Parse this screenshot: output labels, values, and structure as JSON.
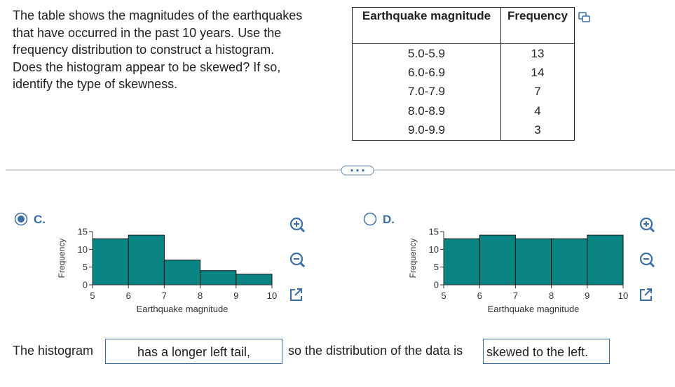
{
  "question": [
    "The table shows the magnitudes of the earthquakes",
    "that have occurred in the past 10 years. Use the",
    "frequency distribution to construct a histogram.",
    "Does the histogram appear to be skewed? If so,",
    "identify the type of skewness."
  ],
  "table": {
    "headers": [
      "Earthquake magnitude",
      "Frequency"
    ],
    "rows": [
      [
        "5.0-5.9",
        13
      ],
      [
        "6.0-6.9",
        14
      ],
      [
        "7.0-7.9",
        7
      ],
      [
        "8.0-8.9",
        4
      ],
      [
        "9.0-9.9",
        3
      ]
    ]
  },
  "options": [
    {
      "label": "C.",
      "selected": true
    },
    {
      "label": "D.",
      "selected": false
    }
  ],
  "chart_data": [
    {
      "type": "histogram",
      "xlabel": "Earthquake magnitude",
      "ylabel": "Frequency",
      "bins": [
        5,
        6,
        7,
        8,
        9,
        10
      ],
      "values": [
        13,
        14,
        7,
        4,
        3
      ],
      "color": "#0b8484",
      "xlim": [
        5,
        10
      ],
      "ylim": [
        0,
        15
      ],
      "xticks": [
        5,
        6,
        7,
        8,
        9,
        10
      ],
      "yticks": [
        0,
        5,
        10,
        15
      ]
    },
    {
      "type": "histogram",
      "xlabel": "Earthquake magnitude",
      "ylabel": "Frequency",
      "bins": [
        5,
        6,
        7,
        8,
        9,
        10
      ],
      "values": [
        13,
        14,
        13,
        13,
        14
      ],
      "color": "#0b8484",
      "xlim": [
        5,
        10
      ],
      "ylim": [
        0,
        15
      ],
      "xticks": [
        5,
        6,
        7,
        8,
        9,
        10
      ],
      "yticks": [
        0,
        5,
        10,
        15
      ]
    }
  ],
  "answer": {
    "prefix": "The histogram",
    "choice1": "has a longer left tail,",
    "middle": "so the distribution of the data is",
    "choice2": "skewed to the left."
  }
}
